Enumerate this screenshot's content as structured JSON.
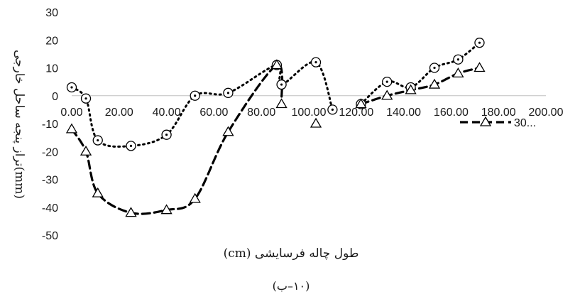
{
  "chart_data": {
    "type": "line",
    "title": "",
    "xlabel": "طول چاله فرسایشی (cm)",
    "ylabel": "تراز پنجه ساحل خارجی(mm)",
    "caption": "(۱۰–ب)",
    "xlim": [
      0,
      200
    ],
    "ylim": [
      -50,
      30
    ],
    "x_tick_labels": [
      "0.00",
      "20.00",
      "40.00",
      "60.00",
      "80.00",
      "100.00",
      "120.00",
      "140.00",
      "160.00",
      "180.00",
      "200.00"
    ],
    "y_tick_labels": [
      "-50",
      "-40",
      "-30",
      "-20",
      "-10",
      "0",
      "10",
      "20",
      "30"
    ],
    "legend_position": "right",
    "series": [
      {
        "name": "",
        "style": "dotted",
        "marker": "circle-dot",
        "color": "#000000",
        "x": [
          0,
          6,
          11,
          25,
          40,
          52,
          66,
          86.5,
          88.5,
          103,
          110
        ],
        "y": [
          3,
          -1,
          -16,
          -18,
          -14,
          0,
          1,
          11,
          4,
          12,
          -5
        ]
      },
      {
        "name": "",
        "style": "dotted",
        "marker": "circle-dot",
        "color": "#000000",
        "x": [
          122,
          133,
          143,
          153,
          163,
          172
        ],
        "y": [
          -3,
          5,
          3,
          10,
          13,
          19
        ]
      },
      {
        "name": "30...",
        "style": "dashed",
        "marker": "triangle",
        "color": "#000000",
        "x": [
          0,
          6,
          11,
          25,
          40,
          52,
          66,
          86.5,
          88.5
        ],
        "y": [
          -12,
          -20,
          -35,
          -42,
          -41,
          -37,
          -13,
          11,
          -3
        ]
      },
      {
        "name": "",
        "style": "dashed",
        "marker": "triangle",
        "color": "#000000",
        "x": [
          122,
          133,
          143,
          153,
          163,
          172
        ],
        "y": [
          -3,
          0,
          2,
          4,
          8,
          10
        ]
      },
      {
        "name": "",
        "style": "none",
        "marker": "triangle",
        "color": "#000000",
        "x": [
          103
        ],
        "y": [
          -10
        ]
      }
    ]
  }
}
